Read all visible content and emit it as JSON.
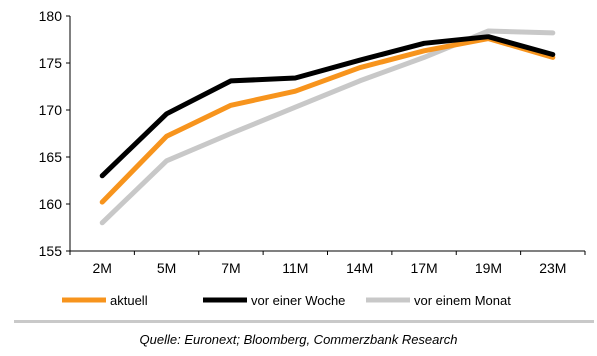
{
  "chart_data": {
    "type": "line",
    "categories": [
      "2M",
      "5M",
      "7M",
      "11M",
      "14M",
      "17M",
      "19M",
      "23M"
    ],
    "ylim": [
      155,
      180
    ],
    "yticks": [
      155,
      160,
      165,
      170,
      175,
      180
    ],
    "grid": false,
    "legend_position": "bottom",
    "series": [
      {
        "name": "aktuell",
        "color": "#f7941d",
        "values": [
          160.2,
          167.2,
          170.5,
          172.0,
          174.5,
          176.3,
          177.6,
          175.6
        ]
      },
      {
        "name": "vor einer Woche",
        "color": "#000000",
        "values": [
          163.0,
          169.6,
          173.1,
          173.4,
          175.3,
          177.1,
          177.8,
          175.9
        ]
      },
      {
        "name": "vor einem Monat",
        "color": "#c8c8c8",
        "values": [
          158.0,
          164.6,
          167.5,
          170.3,
          173.1,
          175.6,
          178.4,
          178.2
        ]
      }
    ]
  },
  "source_note": "Quelle: Euronext; Bloomberg, Commerzbank Research"
}
